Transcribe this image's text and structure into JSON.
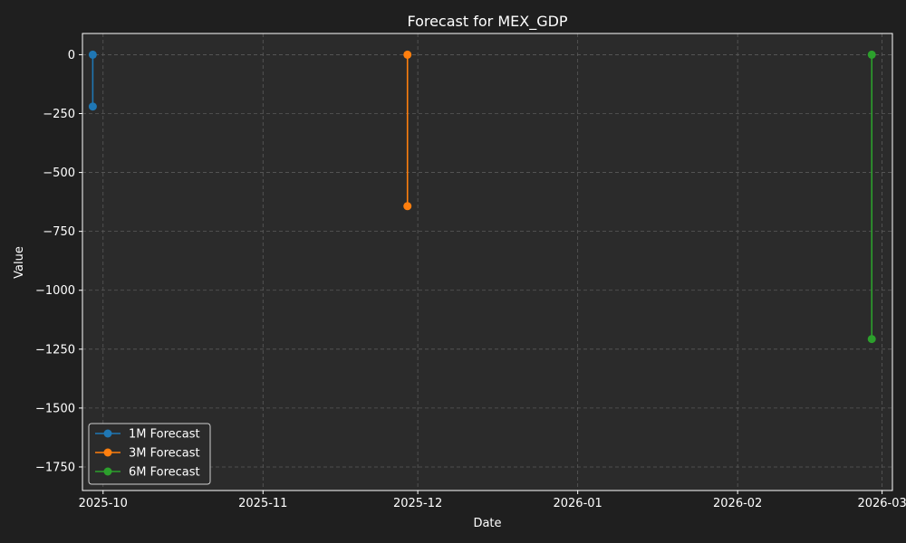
{
  "chart_data": {
    "type": "line",
    "title": "Forecast for MEX_GDP",
    "xlabel": "Date",
    "ylabel": "Value",
    "x_ticks": [
      "2025-10",
      "2025-11",
      "2025-12",
      "2026-01",
      "2026-02",
      "2026-03"
    ],
    "y_ticks": [
      0,
      -250,
      -500,
      -750,
      -1000,
      -1250,
      -1500,
      -1750
    ],
    "ylim": [
      -1850,
      90
    ],
    "xlim": [
      "2025-09-27",
      "2026-03-03"
    ],
    "grid": true,
    "legend_position": "lower-left",
    "series": [
      {
        "name": "1M Forecast",
        "color": "#1f77b4",
        "points": [
          {
            "x": "2025-09-29",
            "y": 0
          },
          {
            "x": "2025-09-29",
            "y": -220
          }
        ]
      },
      {
        "name": "3M Forecast",
        "color": "#ff7f0e",
        "points": [
          {
            "x": "2025-11-29",
            "y": 0
          },
          {
            "x": "2025-11-29",
            "y": -643
          }
        ]
      },
      {
        "name": "6M Forecast",
        "color": "#2ca02c",
        "points": [
          {
            "x": "2026-02-27",
            "y": 0
          },
          {
            "x": "2026-02-27",
            "y": -1207
          }
        ]
      }
    ]
  },
  "colors": {
    "figure_background": "#1f1f1f",
    "plot_background": "#2b2b2b",
    "grid": "#5a5a5a",
    "text": "#ffffff"
  }
}
